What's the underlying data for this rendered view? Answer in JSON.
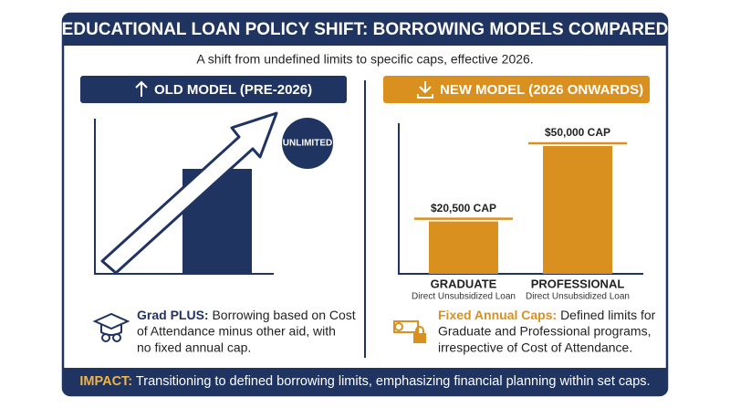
{
  "header": {
    "title": "EDUCATIONAL LOAN POLICY SHIFT: BORROWING MODELS COMPARED"
  },
  "subtitle": "A shift from undefined limits to specific caps, effective 2026.",
  "old_model": {
    "heading": "OLD MODEL (PRE-2026)",
    "badge": "UNLIMITED",
    "description_label": "Grad PLUS:",
    "description_lines": [
      "Borrowing based on Cost",
      "of Attendance minus other aid, with",
      "no fixed annual cap."
    ]
  },
  "new_model": {
    "heading": "NEW MODEL (2026 ONWARDS)",
    "chart": {
      "type": "bar",
      "categories": [
        "GRADUATE",
        "PROFESSIONAL"
      ],
      "sublabels": [
        "Direct Unsubsidized Loan",
        "Direct Unsubsidized Loan"
      ],
      "values": [
        20500,
        50000
      ],
      "value_labels": [
        "$20,500 CAP",
        "$50,000 CAP"
      ],
      "color": "#d9901e"
    },
    "description_label": "Fixed Annual Caps:",
    "description_lines": [
      "Defined limits for",
      "Graduate and Professional programs,",
      "irrespective of Cost of Attendance."
    ]
  },
  "footer": {
    "label": "IMPACT:",
    "text": "Transitioning to defined borrowing limits, emphasizing financial planning within set caps."
  }
}
